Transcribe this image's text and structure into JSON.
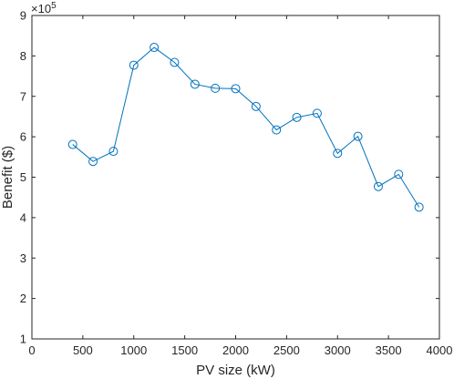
{
  "chart_data": {
    "type": "line",
    "title": "",
    "xlabel": "PV size (kW)",
    "ylabel": "Benefit ($)",
    "xlim": [
      0,
      4000
    ],
    "ylim": [
      1,
      9
    ],
    "y_multiplier": "×10",
    "y_multiplier_exponent": "5",
    "x_ticks": [
      0,
      500,
      1000,
      1500,
      2000,
      2500,
      3000,
      3500,
      4000
    ],
    "y_ticks": [
      1,
      2,
      3,
      4,
      5,
      6,
      7,
      8,
      9
    ],
    "grid": false,
    "marker": "circle",
    "line_color": "#0072BD",
    "series": [
      {
        "x": [
          400,
          600,
          800,
          1000,
          1200,
          1400,
          1600,
          1800,
          2000,
          2200,
          2400,
          2600,
          2800,
          3000,
          3200,
          3400,
          3600,
          3800
        ],
        "values": [
          5.81,
          5.39,
          5.64,
          7.77,
          8.21,
          7.84,
          7.3,
          7.2,
          7.19,
          6.75,
          6.17,
          6.48,
          6.58,
          5.59,
          6.01,
          4.77,
          5.07,
          4.26
        ]
      }
    ]
  }
}
